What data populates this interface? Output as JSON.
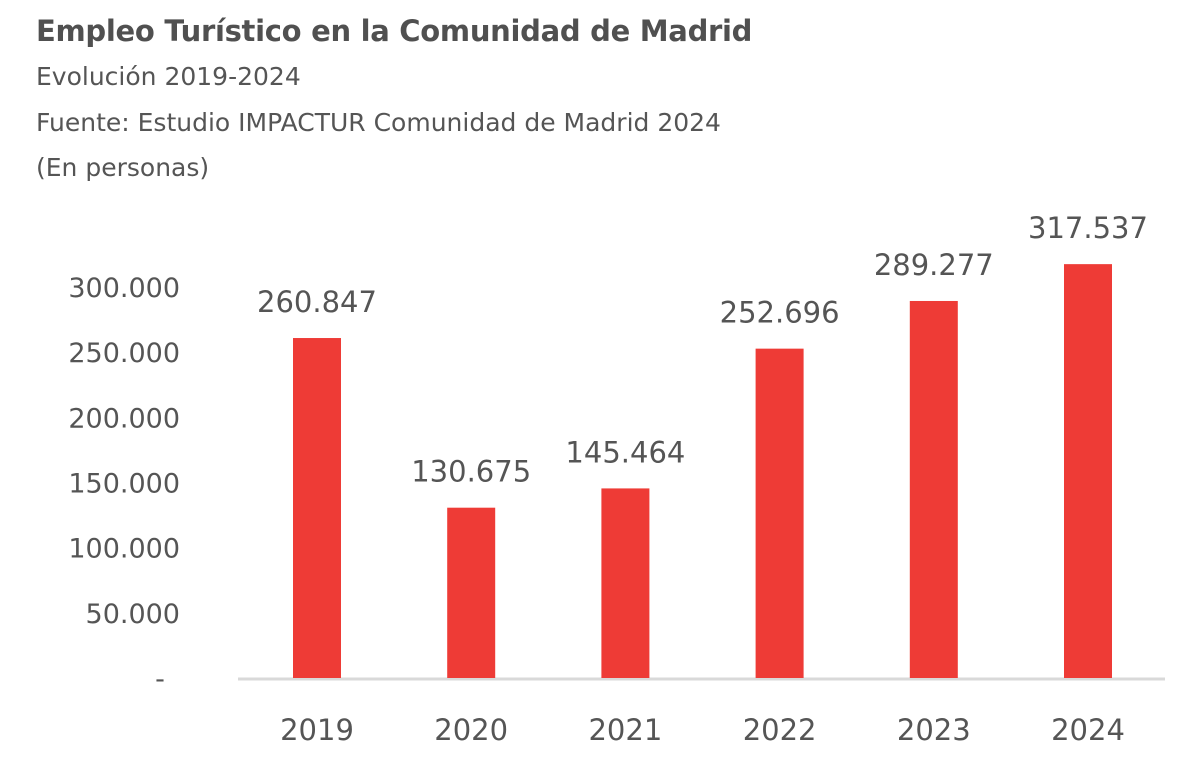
{
  "chart_data": {
    "type": "bar",
    "title": "Empleo Turístico en la Comunidad de Madrid",
    "subtitle": "Evolución 2019-2024",
    "source": "Fuente: Estudio IMPACTUR Comunidad de Madrid 2024",
    "unit_note": "(En personas)",
    "categories": [
      "2019",
      "2020",
      "2021",
      "2022",
      "2023",
      "2024"
    ],
    "values": [
      260847,
      130675,
      145464,
      252696,
      289277,
      317537
    ],
    "data_labels": [
      "260.847",
      "130.675",
      "145.464",
      "252.696",
      "289.277",
      "317.537"
    ],
    "y_ticks": [
      0,
      50000,
      100000,
      150000,
      200000,
      250000,
      300000
    ],
    "y_tick_labels": [
      "-",
      "50.000",
      "100.000",
      "150.000",
      "200.000",
      "250.000",
      "300.000"
    ],
    "ylim": [
      0,
      300000
    ],
    "grid": false,
    "legend": "none",
    "bar_color": "#ee3b36",
    "axis_color": "#d9d9d9"
  }
}
